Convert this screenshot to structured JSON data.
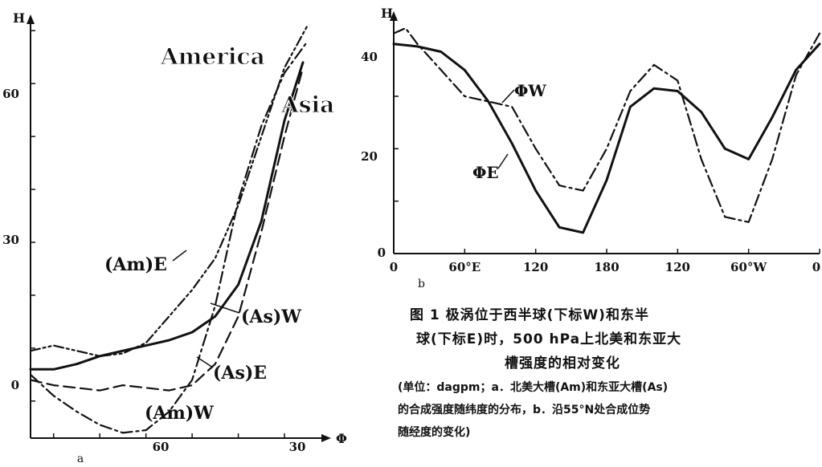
{
  "chart_data": [
    {
      "panel": "a",
      "type": "line",
      "ylabel": "H",
      "xlabel": "Φ",
      "x_reversed": true,
      "xlim": [
        90,
        27
      ],
      "ylim": [
        -7,
        72
      ],
      "x_ticks": [
        "60",
        "30"
      ],
      "y_ticks": [
        "0",
        "30",
        "60"
      ],
      "annotations": [
        "America",
        "Asia"
      ],
      "series": [
        {
          "name": "(Am)E",
          "style": "dash-dot-dot",
          "x": [
            90,
            85,
            80,
            75,
            70,
            65,
            60,
            55,
            50,
            45,
            40,
            35,
            30
          ],
          "y": [
            9.5,
            10.5,
            9.5,
            8.5,
            9,
            11,
            16,
            21,
            27,
            37,
            50,
            63,
            71
          ]
        },
        {
          "name": "(As)W",
          "style": "solid",
          "x": [
            90,
            85,
            80,
            75,
            70,
            65,
            60,
            55,
            50,
            45,
            40,
            35,
            31
          ],
          "y": [
            6,
            6,
            7,
            8.5,
            9.5,
            10.5,
            11.5,
            13,
            16,
            22,
            34,
            53,
            64
          ]
        },
        {
          "name": "(As)E",
          "style": "dashed",
          "x": [
            90,
            85,
            80,
            75,
            70,
            65,
            60,
            55,
            50,
            45,
            40,
            35,
            31
          ],
          "y": [
            4,
            3,
            2.5,
            2,
            3,
            2.5,
            2,
            3,
            7,
            16,
            32,
            50,
            63
          ]
        },
        {
          "name": "(Am)W",
          "style": "dash-dot",
          "x": [
            90,
            85,
            80,
            75,
            70,
            65,
            60,
            55,
            50,
            45,
            40,
            35,
            30
          ],
          "y": [
            5,
            1,
            -2,
            -4.5,
            -6,
            -5.5,
            -2,
            4,
            18,
            38,
            52,
            62,
            68
          ]
        }
      ],
      "series_labels": [
        "(Am)E",
        "(As)W",
        "(As)E",
        "(Am)W"
      ]
    },
    {
      "panel": "b",
      "type": "line",
      "ylabel": "H",
      "xlim": [
        0,
        360
      ],
      "ylim": [
        0,
        45
      ],
      "x_ticks": [
        "0",
        "60°E",
        "120",
        "180",
        "120",
        "60°W",
        "0"
      ],
      "y_ticks": [
        "0",
        "20",
        "40"
      ],
      "series": [
        {
          "name": "ΦW",
          "style": "solid",
          "x": [
            0,
            20,
            40,
            60,
            80,
            100,
            120,
            140,
            160,
            180,
            200,
            220,
            240,
            260,
            280,
            300,
            320,
            340,
            360
          ],
          "y": [
            40,
            39.5,
            38.5,
            35,
            29,
            21,
            12,
            5,
            4,
            14,
            28,
            31.5,
            31,
            27,
            20,
            18,
            26,
            35,
            40
          ]
        },
        {
          "name": "ΦE",
          "style": "dash-dot",
          "x": [
            0,
            10,
            20,
            40,
            60,
            80,
            100,
            120,
            140,
            160,
            180,
            200,
            220,
            240,
            260,
            280,
            300,
            320,
            340,
            360
          ],
          "y": [
            42,
            43,
            40,
            35,
            30,
            29,
            28,
            20,
            13,
            12,
            20,
            31,
            36,
            33,
            18,
            7,
            6,
            18,
            34,
            42
          ]
        }
      ],
      "series_labels": [
        "ΦW",
        "ΦE"
      ]
    }
  ],
  "panel_labels": {
    "a": "a",
    "b": "b"
  },
  "caption": {
    "title_line1": "图 1  极涡位于西半球(下标W)和东半",
    "title_line2": "球(下标E)时，500 hPa上北美和东亚大",
    "title_line3": "槽强度的相对变化",
    "note_line1": "(单位：dagpm；a．北美大槽(Am)和东亚大槽(As)",
    "note_line2": "的合成强度随纬度的分布，b．沿55°N处合成位势",
    "note_line3": "随经度的变化)"
  }
}
